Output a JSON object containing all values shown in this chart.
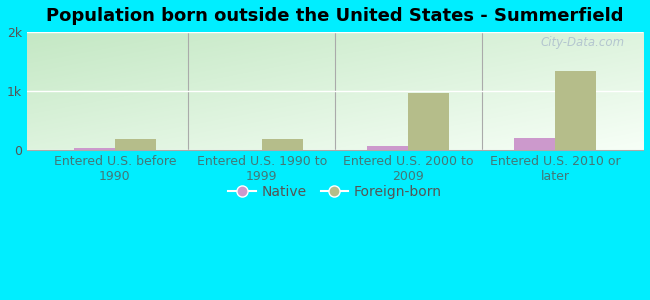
{
  "title": "Population born outside the United States - Summerfield",
  "categories": [
    "Entered U.S. before\n1990",
    "Entered U.S. 1990 to\n1999",
    "Entered U.S. 2000 to\n2009",
    "Entered U.S. 2010 or\nlater"
  ],
  "native_values": [
    40,
    0,
    70,
    200
  ],
  "foreign_born_values": [
    190,
    185,
    970,
    1340
  ],
  "native_color": "#cc99cc",
  "foreign_born_color": "#b5bd8a",
  "background_color": "#00eeff",
  "plot_bg_top_left": "#b8ddb8",
  "plot_bg_bottom_right": "#f5fff5",
  "ylim": [
    0,
    2000
  ],
  "ytick_labels": [
    "0",
    "1k",
    "2k"
  ],
  "bar_width": 0.28,
  "title_fontsize": 13,
  "tick_fontsize": 9,
  "legend_fontsize": 10,
  "xtick_color": "#447777",
  "ytick_color": "#555555",
  "watermark": "City-Data.com"
}
